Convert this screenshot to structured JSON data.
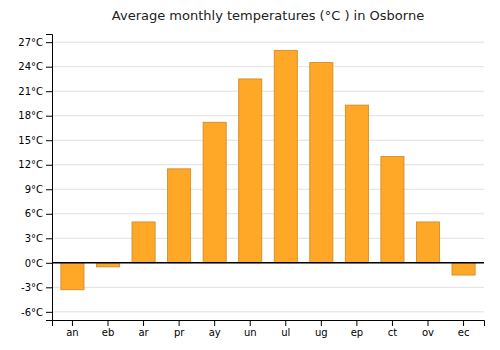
{
  "chart_data": {
    "type": "bar",
    "title": "Average monthly temperatures (°C ) in Osborne",
    "categories": [
      "an",
      "eb",
      "ar",
      "pr",
      "ay",
      "un",
      "ul",
      "ug",
      "ep",
      "ct",
      "ov",
      "ec"
    ],
    "values": [
      -3.3,
      -0.5,
      5.0,
      11.5,
      17.2,
      22.5,
      26.0,
      24.5,
      19.3,
      13.0,
      5.0,
      -1.5
    ],
    "color": "#FFA726",
    "ylim": [
      -7,
      28
    ],
    "yticks": [
      {
        "value": -6,
        "label": "-6°C"
      },
      {
        "value": -3,
        "label": "-3°C"
      },
      {
        "value": 0,
        "label": "0°C"
      },
      {
        "value": 3,
        "label": "3°C"
      },
      {
        "value": 6,
        "label": "6°C"
      },
      {
        "value": 9,
        "label": "9°C"
      },
      {
        "value": 12,
        "label": "12°C"
      },
      {
        "value": 15,
        "label": "15°C"
      },
      {
        "value": 18,
        "label": "18°C"
      },
      {
        "value": 21,
        "label": "21°C"
      },
      {
        "value": 24,
        "label": "24°C"
      },
      {
        "value": 27,
        "label": "27°C"
      }
    ],
    "grid": true
  }
}
